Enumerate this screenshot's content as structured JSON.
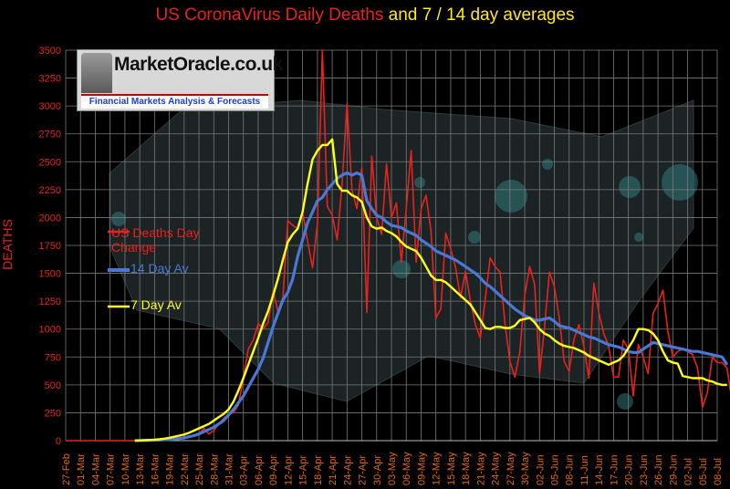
{
  "title": {
    "part1": "US CoronaVirus Daily Deaths",
    "part2": "and 7 / 14 day averages"
  },
  "logo": {
    "brand": "MarketOracle.co.uk",
    "tagline": "Financial Markets Analysis & Forecasts"
  },
  "colors": {
    "daily": "#e8231f",
    "avg14": "#4a78d4",
    "avg7": "#ffff1e",
    "axis_text": "#e8231f",
    "date_text": "#e06a1e"
  },
  "chart_data": {
    "type": "line",
    "ylabel": "DEATHS",
    "ylim": [
      0,
      3500
    ],
    "yticks": [
      0,
      250,
      500,
      750,
      1000,
      1250,
      1500,
      1750,
      2000,
      2250,
      2500,
      2750,
      3000,
      3250,
      3500
    ],
    "xticks": [
      "27-Feb",
      "01-Mar",
      "04-Mar",
      "07-Mar",
      "10-Mar",
      "13-Mar",
      "16-Mar",
      "19-Mar",
      "22-Mar",
      "25-Mar",
      "28-Mar",
      "31-Mar",
      "03-Apr",
      "06-Apr",
      "09-Apr",
      "12-Apr",
      "15-Apr",
      "18-Apr",
      "21-Apr",
      "24-Apr",
      "27-Apr",
      "30-Apr",
      "03-May",
      "06-May",
      "09-May",
      "12-May",
      "15-May",
      "18-May",
      "21-May",
      "24-May",
      "27-May",
      "30-May",
      "02-Jun",
      "05-Jun",
      "08-Jun",
      "11-Jun",
      "14-Jun",
      "17-Jun",
      "20-Jun",
      "23-Jun",
      "26-Jun",
      "29-Jun",
      "02-Jul",
      "05-Jul",
      "08-Jul"
    ],
    "grid": true,
    "series": [
      {
        "name": "US Deaths Day Change",
        "color": "#e8231f",
        "values": [
          0,
          0,
          0,
          0,
          0,
          0,
          0,
          0,
          0,
          0,
          0,
          0,
          0,
          0,
          0,
          0,
          0,
          0,
          1,
          2,
          3,
          5,
          10,
          20,
          35,
          40,
          50,
          60,
          110,
          60,
          90,
          150,
          200,
          240,
          250,
          320,
          560,
          820,
          900,
          1050,
          1000,
          1060,
          1340,
          1160,
          1280,
          1970,
          1930,
          1900,
          2050,
          1790,
          1550,
          1950,
          3500,
          2100,
          2020,
          1800,
          2300,
          3020,
          2250,
          2080,
          2450,
          1150,
          2550,
          2000,
          1850,
          2480,
          2000,
          2130,
          1600,
          2080,
          2600,
          1600,
          2080,
          2200,
          1880,
          1100,
          1180,
          1860,
          1720,
          1550,
          1280,
          1520,
          1250,
          1040,
          920,
          1270,
          1640,
          1560,
          1510,
          1050,
          710,
          570,
          790,
          1300,
          1560,
          1400,
          600,
          1010,
          1510,
          1380,
          1100,
          710,
          620,
          910,
          1040,
          840,
          560,
          1410,
          1150,
          960,
          850,
          570,
          570,
          900,
          820,
          400,
          860,
          750,
          600,
          1140,
          1230,
          1350,
          980,
          750,
          800,
          820,
          800,
          770,
          650,
          300,
          430,
          750,
          700,
          700,
          650,
          350,
          240
        ]
      },
      {
        "name": "14 Day Av",
        "color": "#4a78d4",
        "values": [
          null,
          null,
          null,
          null,
          null,
          null,
          null,
          null,
          null,
          null,
          null,
          null,
          null,
          null,
          0,
          1,
          2,
          3,
          4,
          6,
          8,
          10,
          15,
          20,
          25,
          35,
          45,
          60,
          80,
          100,
          120,
          150,
          180,
          230,
          280,
          340,
          400,
          480,
          560,
          640,
          740,
          880,
          1020,
          1140,
          1260,
          1330,
          1450,
          1650,
          1800,
          1950,
          2050,
          2150,
          2180,
          2250,
          2300,
          2350,
          2380,
          2400,
          2380,
          2400,
          2380,
          2150,
          2080,
          2020,
          2000,
          1960,
          1930,
          1920,
          1910,
          1880,
          1860,
          1840,
          1800,
          1770,
          1740,
          1700,
          1680,
          1660,
          1640,
          1620,
          1590,
          1560,
          1530,
          1500,
          1460,
          1410,
          1380,
          1340,
          1300,
          1260,
          1220,
          1180,
          1150,
          1120,
          1100,
          1080,
          1080,
          1090,
          1100,
          1070,
          1030,
          1020,
          1010,
          990,
          970,
          950,
          930,
          920,
          900,
          880,
          860,
          850,
          840,
          820,
          800,
          790,
          790,
          820,
          850,
          880,
          870,
          860,
          850,
          840,
          830,
          820,
          810,
          800,
          800,
          790,
          780,
          770,
          760,
          750,
          680
        ]
      },
      {
        "name": "7 Day Av",
        "color": "#ffff1e",
        "values": [
          null,
          null,
          null,
          null,
          null,
          null,
          null,
          null,
          null,
          null,
          null,
          null,
          null,
          null,
          0,
          2,
          4,
          6,
          8,
          12,
          18,
          25,
          35,
          45,
          55,
          70,
          90,
          110,
          130,
          150,
          180,
          210,
          240,
          280,
          350,
          450,
          560,
          680,
          800,
          920,
          1050,
          1160,
          1300,
          1450,
          1620,
          1780,
          1850,
          1900,
          2050,
          2300,
          2520,
          2600,
          2650,
          2650,
          2700,
          2300,
          2240,
          2240,
          2200,
          2180,
          2140,
          2000,
          1920,
          1900,
          1910,
          1880,
          1860,
          1830,
          1780,
          1740,
          1720,
          1700,
          1640,
          1560,
          1480,
          1440,
          1440,
          1420,
          1380,
          1340,
          1300,
          1260,
          1220,
          1150,
          1080,
          1010,
          1000,
          1020,
          1020,
          1010,
          1010,
          1030,
          1080,
          1090,
          1100,
          1060,
          1000,
          960,
          940,
          900,
          870,
          850,
          840,
          830,
          810,
          790,
          760,
          740,
          720,
          700,
          680,
          700,
          720,
          760,
          830,
          900,
          1000,
          1000,
          990,
          960,
          900,
          800,
          720,
          700,
          690,
          580,
          570,
          560,
          560,
          560,
          540,
          530,
          510,
          500,
          500
        ]
      }
    ],
    "legend": [
      {
        "label": "US Deaths Day Change",
        "color": "#e8231f"
      },
      {
        "label": "14 Day Av",
        "color": "#4a78d4"
      },
      {
        "label": "7 Day Av",
        "color": "#ffff1e"
      }
    ]
  }
}
